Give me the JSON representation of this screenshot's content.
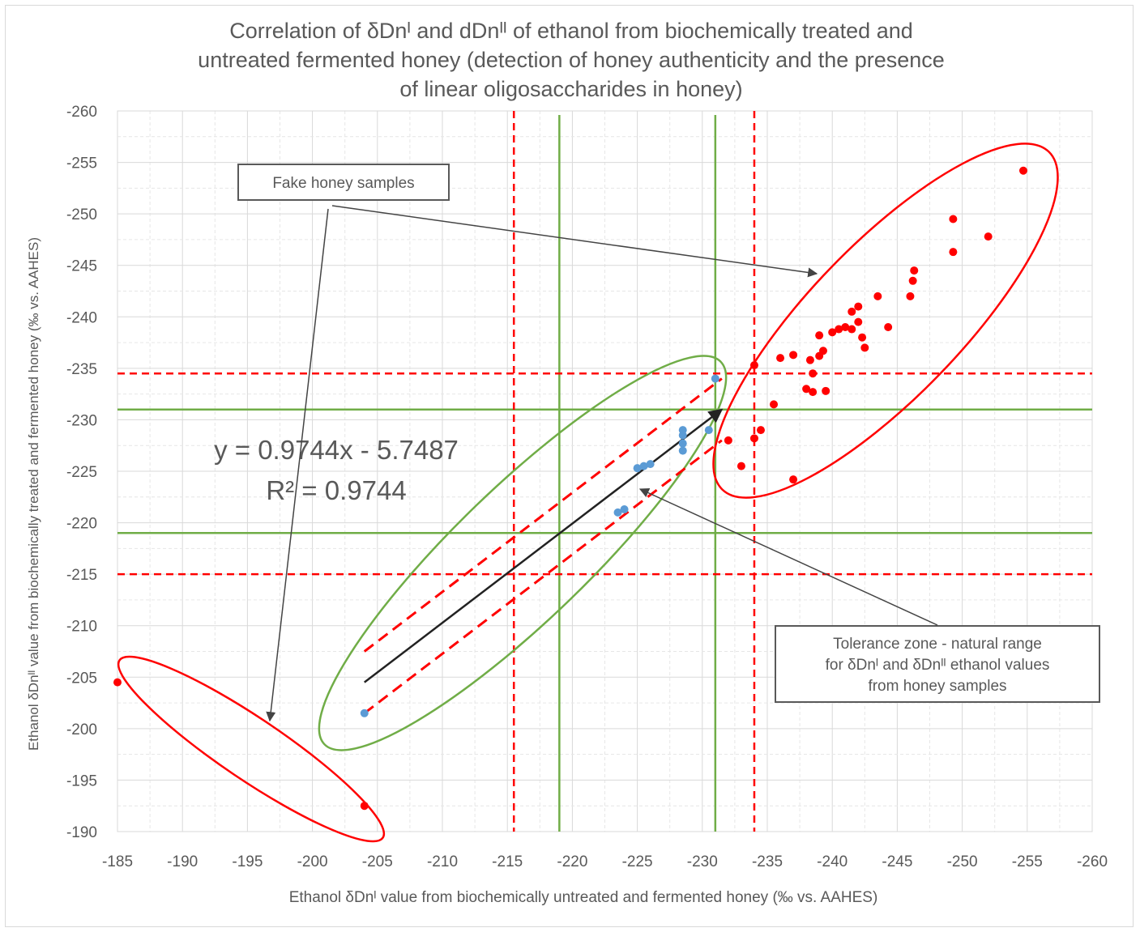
{
  "chart_data": {
    "type": "scatter",
    "title_lines": [
      "Correlation of δDnᴵ and dDnᴵᴵ of ethanol from biochemically treated and",
      "untreated fermented honey  (detection of honey authenticity and the presence",
      "of linear oligosaccharides in honey)"
    ],
    "xlabel": "Ethanol δDnᴵ value from biochemically untreated and fermented honey (‰ vs. AAHES)",
    "ylabel": "Ethanol δDnᴵᴵ value from biochemically treated and fermented honey (‰ vs. AAHES)",
    "xlim": [
      -185,
      -260
    ],
    "ylim": [
      -190,
      -260
    ],
    "xticks": [
      -185,
      -190,
      -195,
      -200,
      -205,
      -210,
      -215,
      -220,
      -225,
      -230,
      -235,
      -240,
      -245,
      -250,
      -255,
      -260
    ],
    "yticks": [
      -190,
      -195,
      -200,
      -205,
      -210,
      -215,
      -220,
      -225,
      -230,
      -235,
      -240,
      -245,
      -250,
      -255,
      -260
    ],
    "grid": true,
    "equation": "y = 0.9744x - 5.7487",
    "r2": "R² = 0.9744",
    "annotations": {
      "fake": "Fake honey samples",
      "tolerance": [
        "Tolerance zone - natural range",
        "for δDnᴵ and δDnᴵᴵ ethanol values",
        "from honey samples"
      ]
    },
    "reference_lines": {
      "green_vertical_x": [
        -219,
        -231
      ],
      "green_horizontal_y": [
        -219,
        -231
      ],
      "red_dashed_vertical_x": [
        -215.5,
        -234
      ],
      "red_dashed_horizontal_y": [
        -215,
        -234.5
      ]
    },
    "series": [
      {
        "color": "#5b9bd5",
        "points": [
          [
            -204,
            -201.5
          ],
          [
            -223.5,
            -221
          ],
          [
            -224,
            -221.3
          ],
          [
            -225,
            -225.3
          ],
          [
            -225.5,
            -225.5
          ],
          [
            -226,
            -225.7
          ],
          [
            -228.5,
            -227
          ],
          [
            -228.5,
            -227.7
          ],
          [
            -228.5,
            -228.5
          ],
          [
            -228.5,
            -229
          ],
          [
            -230.5,
            -229
          ],
          [
            -231,
            -234
          ]
        ]
      },
      {
        "color": "#ff0000",
        "points": [
          [
            -185,
            -204.5
          ],
          [
            -204,
            -192.5
          ],
          [
            -232,
            -228
          ],
          [
            -233,
            -225.5
          ],
          [
            -234,
            -228.2
          ],
          [
            -234.5,
            -229
          ],
          [
            -234,
            -235.3
          ],
          [
            -235.5,
            -231.5
          ],
          [
            -236,
            -236
          ],
          [
            -237,
            -236.3
          ],
          [
            -237,
            -224.2
          ],
          [
            -238,
            -233
          ],
          [
            -238.3,
            -235.8
          ],
          [
            -238.5,
            -234.5
          ],
          [
            -238.5,
            -232.7
          ],
          [
            -239,
            -238.2
          ],
          [
            -239,
            -236.2
          ],
          [
            -239.3,
            -236.7
          ],
          [
            -239.5,
            -232.8
          ],
          [
            -240,
            -238.5
          ],
          [
            -240.5,
            -238.8
          ],
          [
            -241,
            -239
          ],
          [
            -241.5,
            -238.8
          ],
          [
            -241.5,
            -240.5
          ],
          [
            -242,
            -241
          ],
          [
            -242,
            -239.5
          ],
          [
            -242.3,
            -238
          ],
          [
            -242.5,
            -237
          ],
          [
            -243.5,
            -242
          ],
          [
            -244.3,
            -239
          ],
          [
            -246,
            -242
          ],
          [
            -246.2,
            -243.5
          ],
          [
            -246.3,
            -244.5
          ],
          [
            -249.3,
            -246.3
          ],
          [
            -249.3,
            -249.5
          ],
          [
            -252,
            -247.8
          ],
          [
            -254.7,
            -254.2
          ]
        ]
      }
    ],
    "trendline": {
      "x": [
        -204,
        -231.5
      ],
      "y": [
        -204.5,
        -231
      ]
    },
    "tolerance_band_offset": 3
  }
}
